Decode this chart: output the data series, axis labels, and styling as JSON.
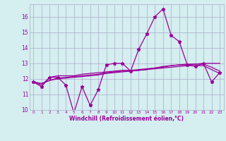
{
  "x": [
    0,
    1,
    2,
    3,
    4,
    5,
    6,
    7,
    8,
    9,
    10,
    11,
    12,
    13,
    14,
    15,
    16,
    17,
    18,
    19,
    20,
    21,
    22,
    23
  ],
  "line1": [
    11.8,
    11.5,
    12.1,
    12.1,
    11.6,
    9.8,
    11.5,
    10.3,
    11.3,
    12.9,
    13.0,
    13.0,
    12.5,
    13.9,
    14.9,
    16.0,
    16.5,
    14.8,
    14.4,
    12.9,
    12.8,
    13.0,
    11.8,
    12.4
  ],
  "line2": [
    11.8,
    11.6,
    12.1,
    12.2,
    12.2,
    12.2,
    12.3,
    12.35,
    12.4,
    12.45,
    12.5,
    12.55,
    12.55,
    12.6,
    12.65,
    12.7,
    12.8,
    12.85,
    12.9,
    12.95,
    12.95,
    13.0,
    13.0,
    13.0
  ],
  "line3": [
    11.8,
    11.7,
    11.9,
    12.05,
    12.1,
    12.15,
    12.2,
    12.25,
    12.3,
    12.4,
    12.45,
    12.5,
    12.5,
    12.55,
    12.6,
    12.7,
    12.75,
    12.85,
    12.9,
    12.9,
    12.95,
    12.95,
    12.75,
    12.5
  ],
  "line4": [
    11.8,
    11.7,
    11.9,
    12.0,
    12.05,
    12.1,
    12.15,
    12.2,
    12.25,
    12.35,
    12.4,
    12.45,
    12.5,
    12.55,
    12.6,
    12.65,
    12.7,
    12.75,
    12.8,
    12.85,
    12.85,
    12.85,
    12.6,
    12.35
  ],
  "line_color": "#990099",
  "bg_color": "#d5eef0",
  "grid_color": "#aaaacc",
  "xlabel": "Windchill (Refroidissement éolien,°C)",
  "ylim": [
    10,
    16.8
  ],
  "yticks": [
    10,
    11,
    12,
    13,
    14,
    15,
    16
  ],
  "xlim": [
    -0.5,
    23.5
  ],
  "xticks": [
    0,
    1,
    2,
    3,
    4,
    5,
    6,
    7,
    8,
    9,
    10,
    11,
    12,
    13,
    14,
    15,
    16,
    17,
    18,
    19,
    20,
    21,
    22,
    23
  ]
}
